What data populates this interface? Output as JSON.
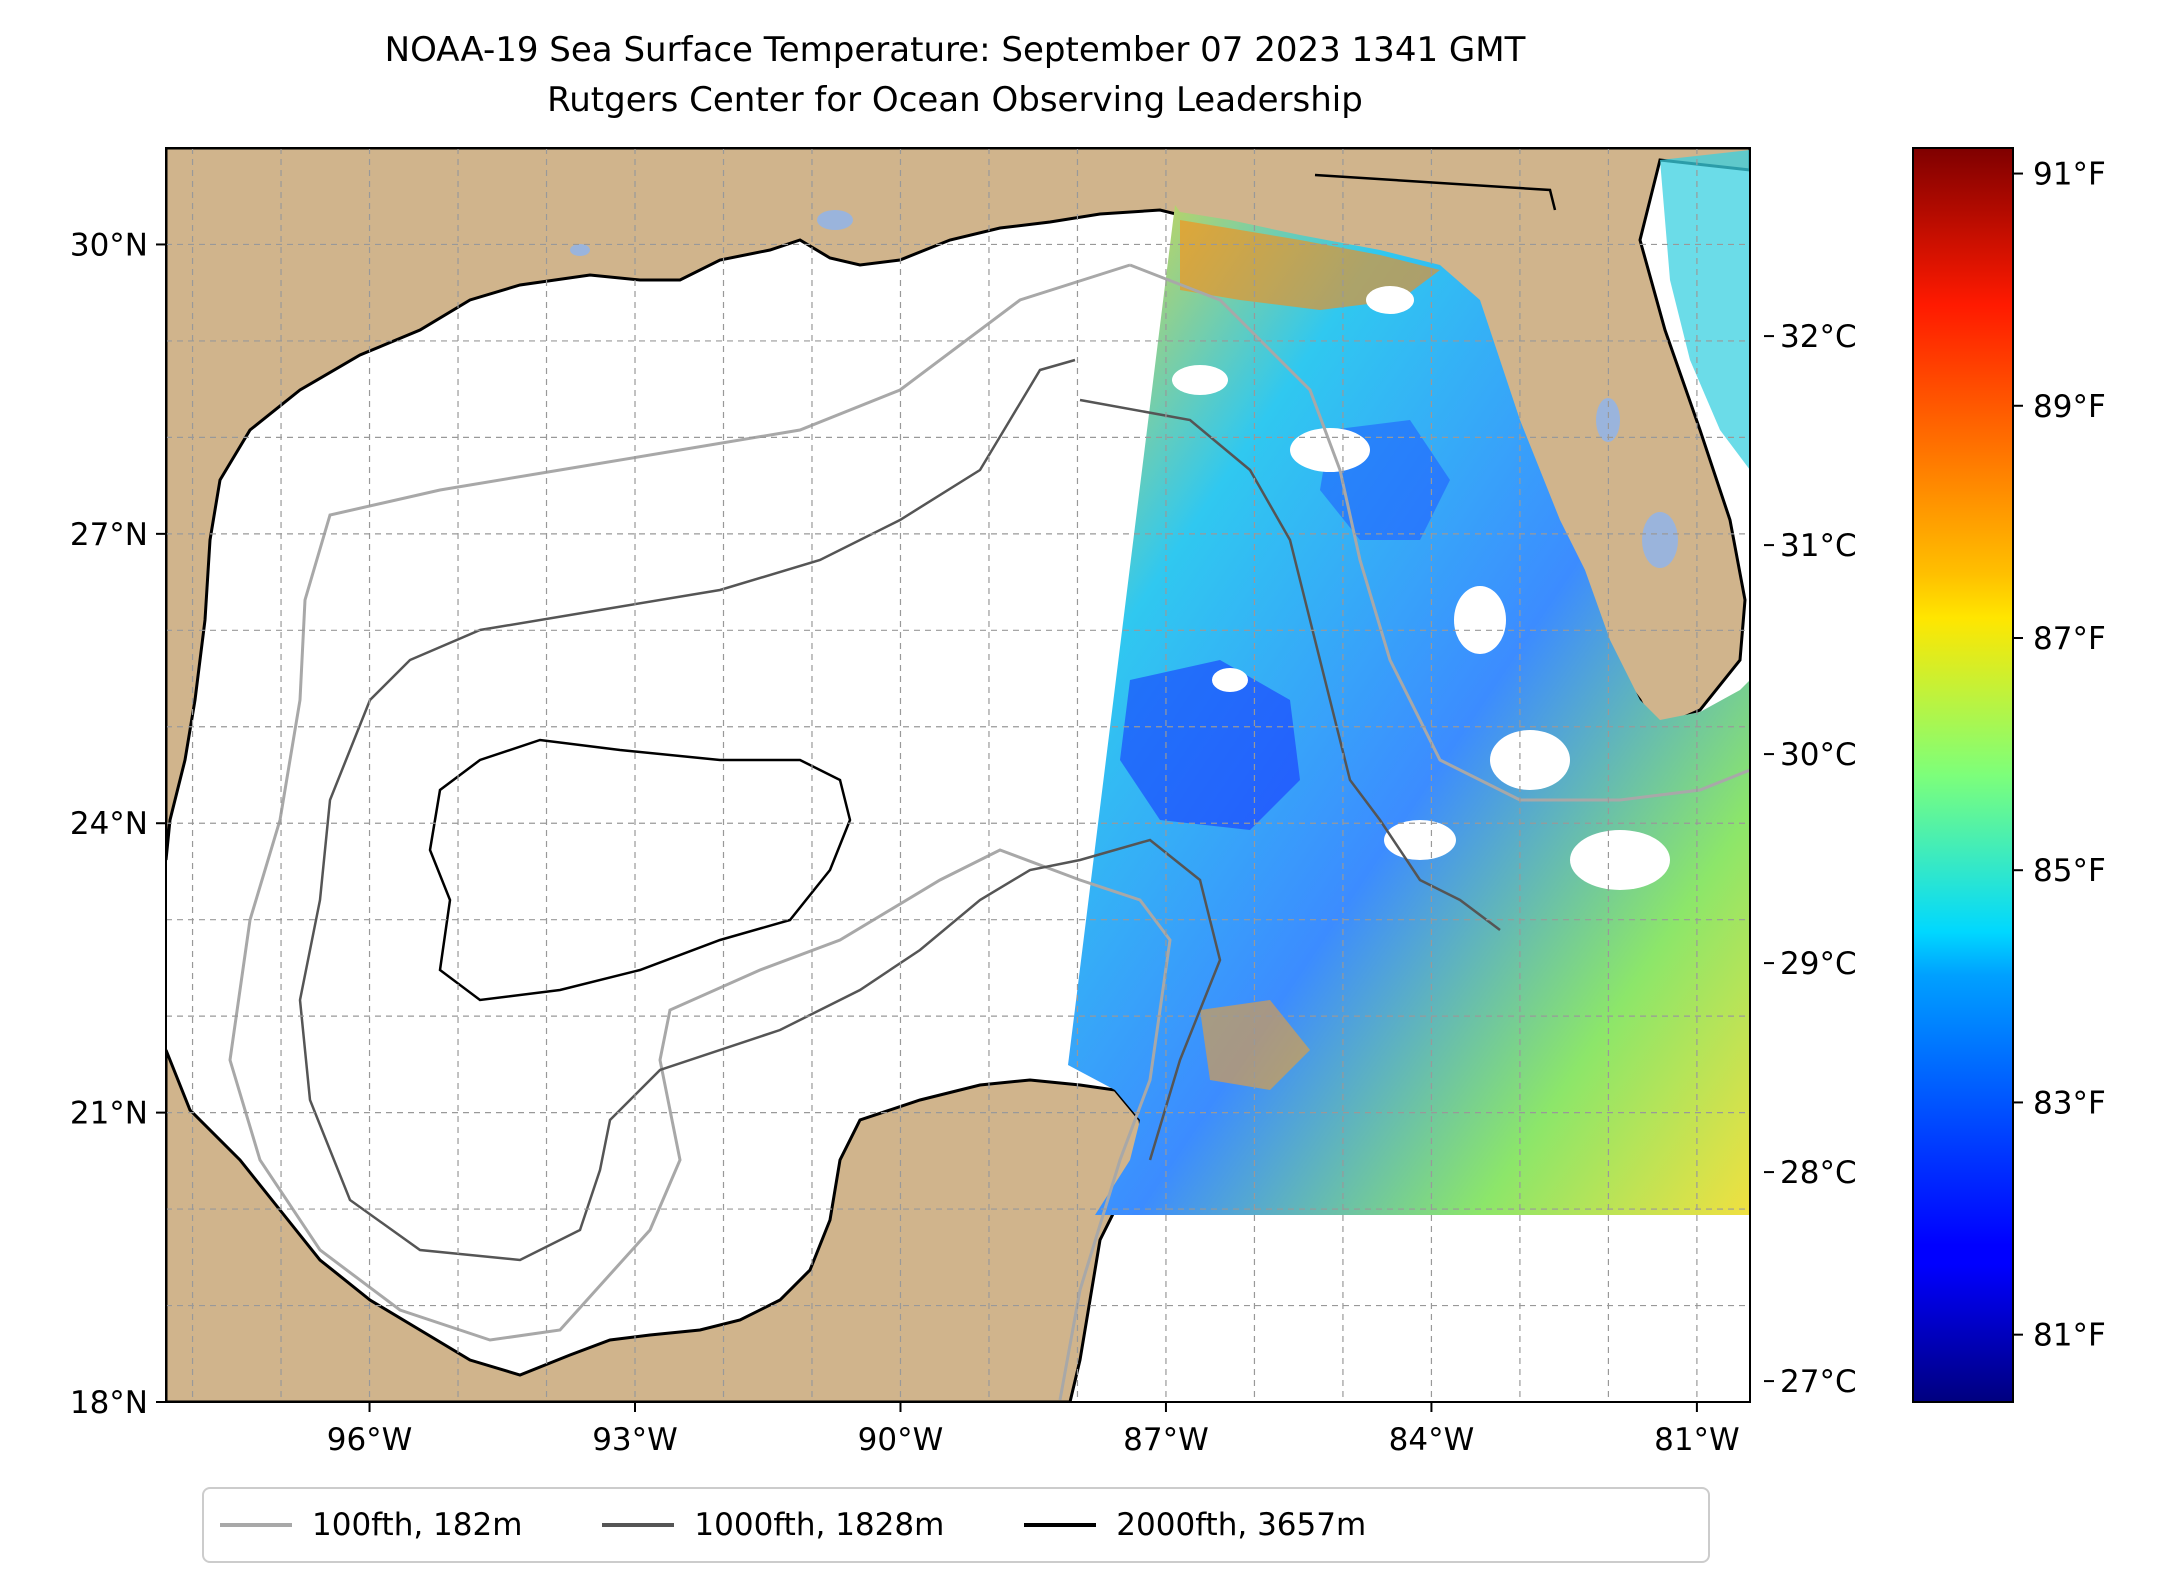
{
  "title_line1": "NOAA-19 Sea Surface Temperature: September 07 2023 1341 GMT",
  "title_line2": "Rutgers Center for Ocean Observing Leadership",
  "map": {
    "extent": {
      "lon_min": -98.3,
      "lon_max": -80.4,
      "lat_min": 18.0,
      "lat_max": 31.0
    },
    "land_color": "#d0b48c",
    "lake_color": "#9ab4dc",
    "grid": true,
    "lat_ticks": [
      {
        "value": 18,
        "label": "18°N"
      },
      {
        "value": 21,
        "label": "21°N"
      },
      {
        "value": 24,
        "label": "24°N"
      },
      {
        "value": 27,
        "label": "27°N"
      },
      {
        "value": 30,
        "label": "30°N"
      }
    ],
    "lon_ticks": [
      {
        "value": -96,
        "label": "96°W"
      },
      {
        "value": -93,
        "label": "93°W"
      },
      {
        "value": -90,
        "label": "90°W"
      },
      {
        "value": -87,
        "label": "87°W"
      },
      {
        "value": -84,
        "label": "84°W"
      },
      {
        "value": -81,
        "label": "81°W"
      }
    ],
    "swath_note_colors": {
      "cool": "#1a3cff",
      "mid": "#35d4e8",
      "warm": "#f0e030",
      "hot": "#ff7a10"
    }
  },
  "colorbar": {
    "colormap": "jet",
    "min_c": 26.9,
    "max_c": 32.9,
    "celsius_ticks": [
      {
        "value": 27,
        "label": "27°C"
      },
      {
        "value": 28,
        "label": "28°C"
      },
      {
        "value": 29,
        "label": "29°C"
      },
      {
        "value": 30,
        "label": "30°C"
      },
      {
        "value": 31,
        "label": "31°C"
      },
      {
        "value": 32,
        "label": "32°C"
      }
    ],
    "fahrenheit_ticks": [
      {
        "value": 81,
        "label": "81°F"
      },
      {
        "value": 83,
        "label": "83°F"
      },
      {
        "value": 85,
        "label": "85°F"
      },
      {
        "value": 87,
        "label": "87°F"
      },
      {
        "value": 89,
        "label": "89°F"
      },
      {
        "value": 91,
        "label": "91°F"
      }
    ]
  },
  "legend": [
    {
      "label": "100fth, 182m",
      "color": "#a8a8a8"
    },
    {
      "label": "1000fth, 1828m",
      "color": "#555555"
    },
    {
      "label": "2000fth, 3657m",
      "color": "#000000"
    }
  ]
}
